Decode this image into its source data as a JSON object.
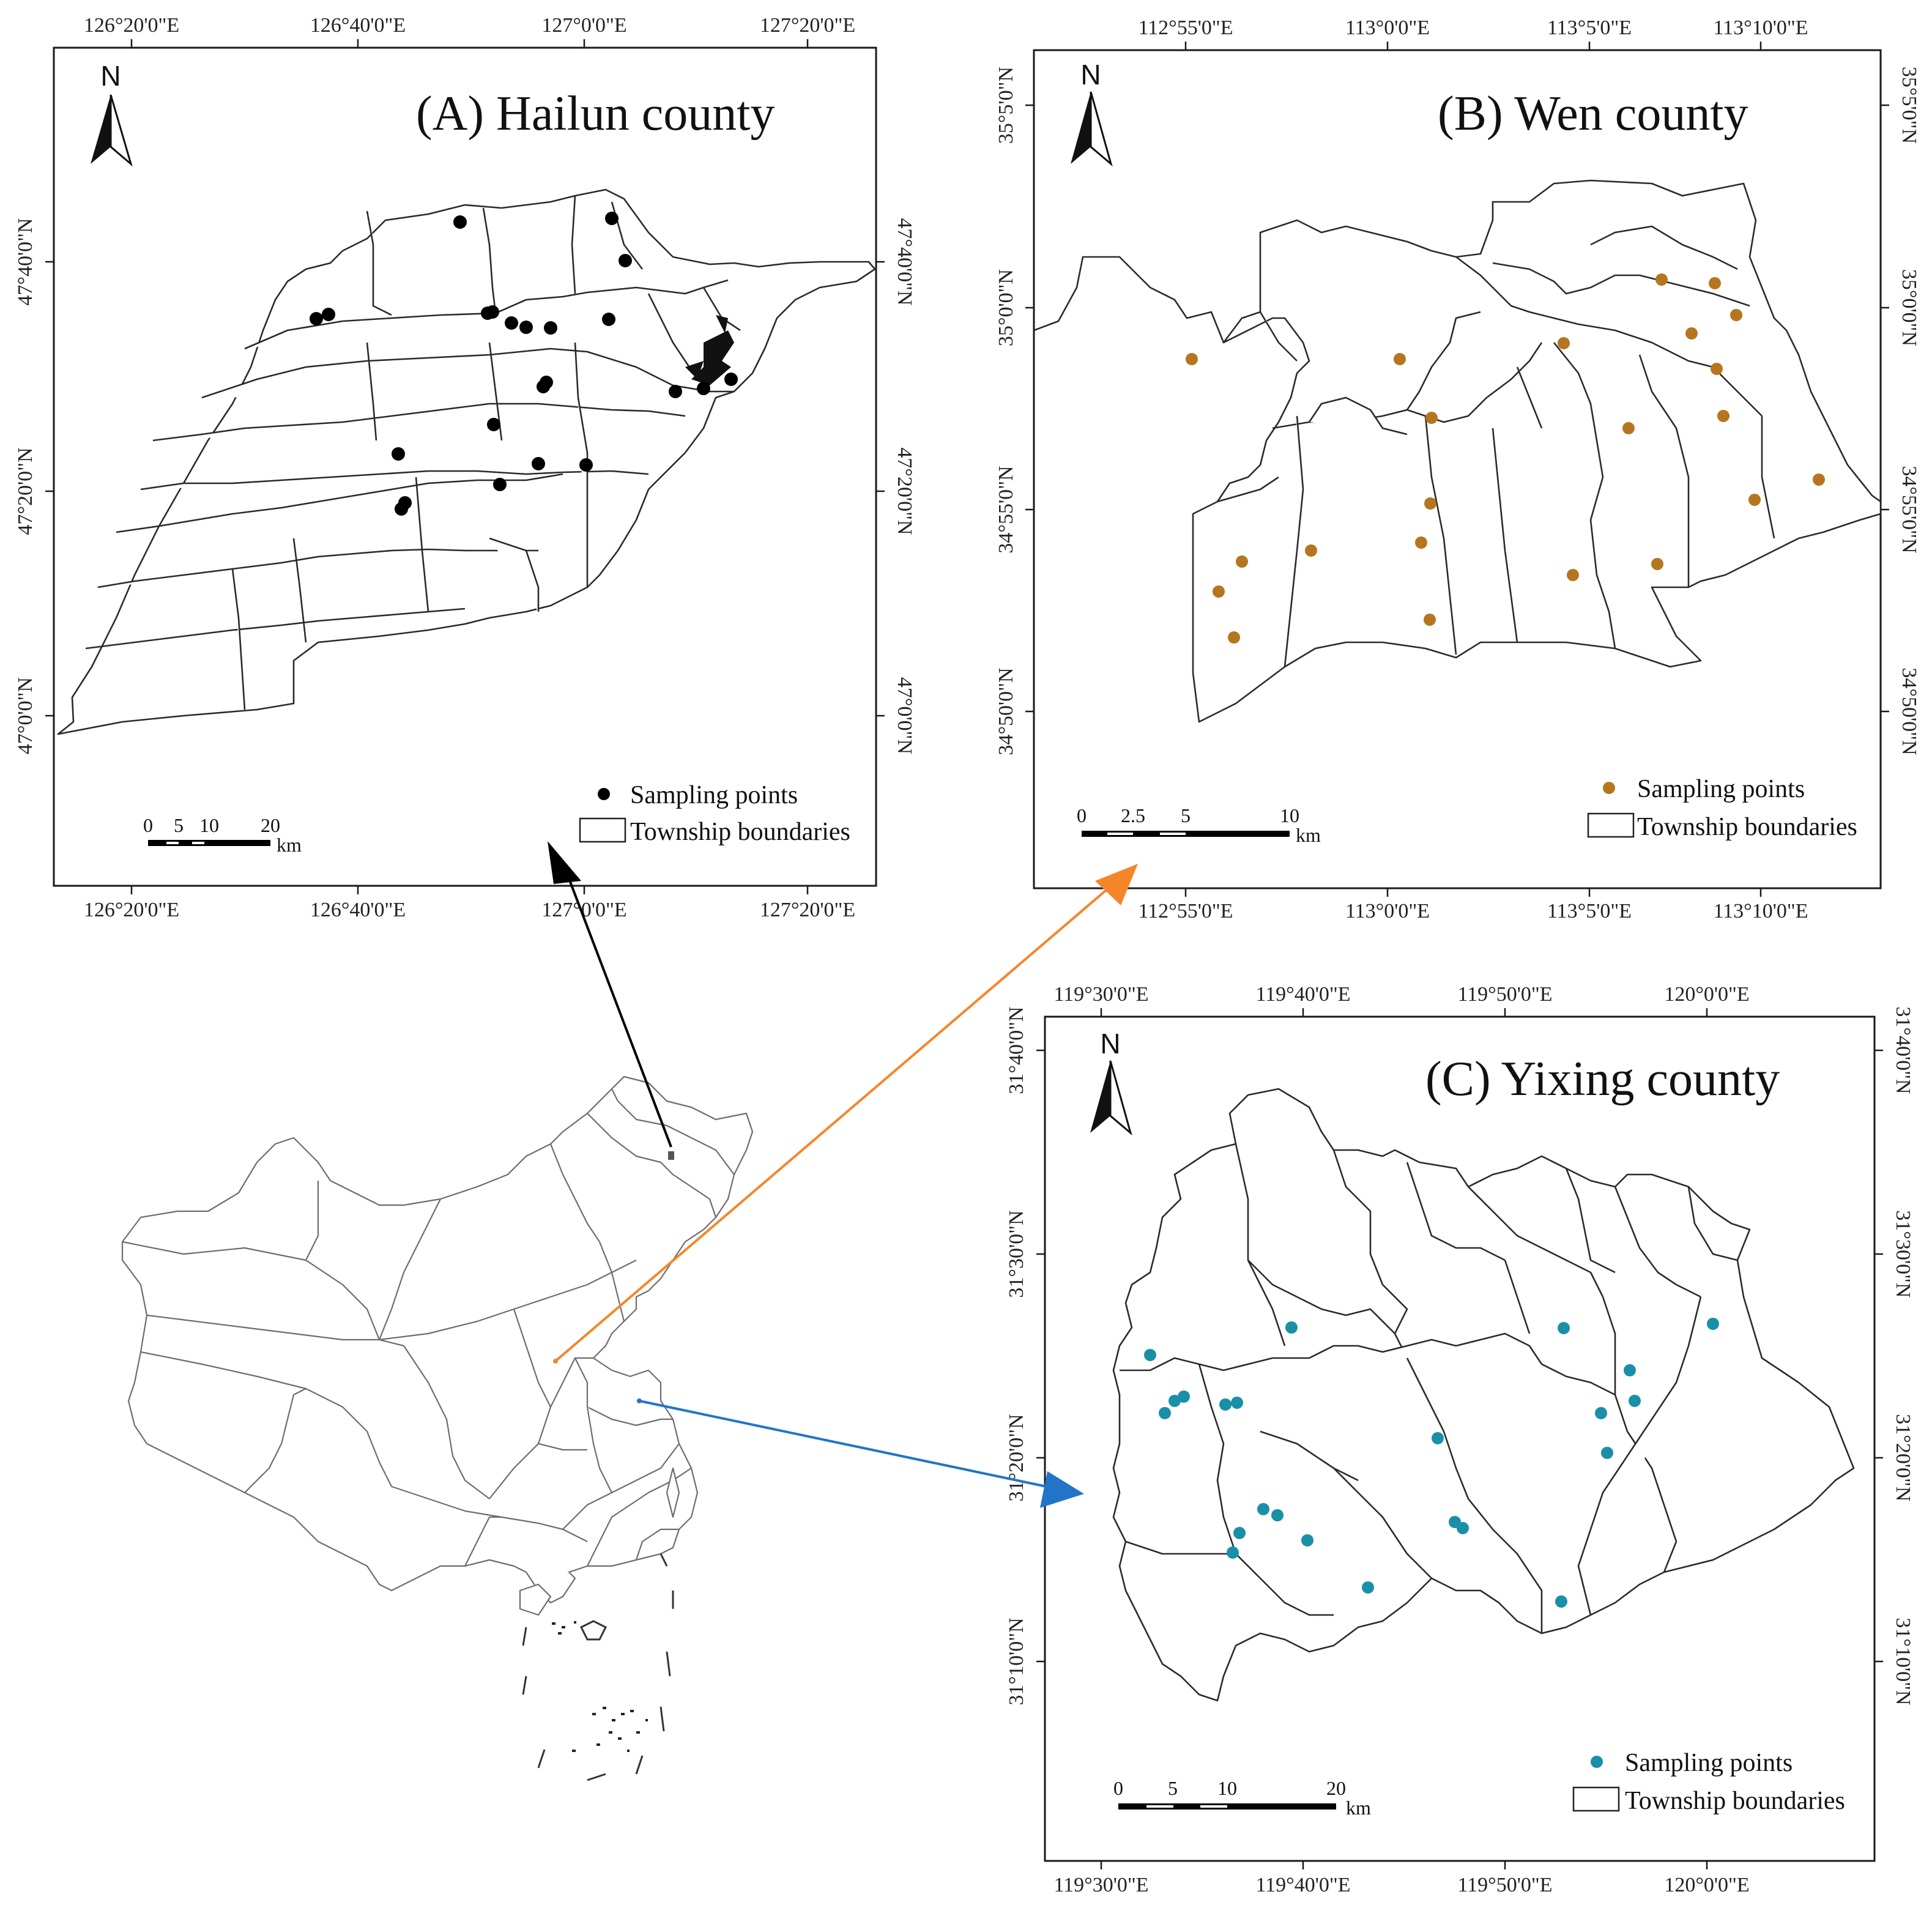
{
  "panels": {
    "hailun": {
      "title": "(A) Hailun county",
      "north_label": "N",
      "top_ticks": [
        "126°20'0\"E",
        "126°40'0\"E",
        "127°0'0\"E",
        "127°20'0\"E"
      ],
      "bottom_ticks": [
        "126°20'0\"E",
        "126°40'0\"E",
        "127°0'0\"E",
        "127°20'0\"E"
      ],
      "left_ticks": [
        "47°40'0\"N",
        "47°20'0\"N",
        "47°0'0\"N"
      ],
      "right_ticks": [
        "47°40'0\"N",
        "47°20'0\"N",
        "47°0'0\"N"
      ],
      "legend_points": "Sampling points",
      "legend_bounds": "Township boundaries",
      "scale_labels": [
        "0",
        "5",
        "10",
        "20"
      ],
      "scale_unit": "km",
      "point_color": "#000000"
    },
    "wen": {
      "title": "(B) Wen county",
      "north_label": "N",
      "top_ticks": [
        "112°55'0\"E",
        "113°0'0\"E",
        "113°5'0\"E",
        "113°10'0\"E"
      ],
      "bottom_ticks": [
        "112°55'0\"E",
        "113°0'0\"E",
        "113°5'0\"E",
        "113°10'0\"E"
      ],
      "left_ticks": [
        "35°5'0\"N",
        "35°0'0\"N",
        "34°55'0\"N",
        "34°50'0\"N"
      ],
      "right_ticks": [
        "35°5'0\"N",
        "35°0'0\"N",
        "34°55'0\"N",
        "34°50'0\"N"
      ],
      "legend_points": "Sampling points",
      "legend_bounds": "Township boundaries",
      "scale_labels": [
        "0",
        "2.5",
        "5",
        "10"
      ],
      "scale_unit": "km",
      "point_color": "#b5761f"
    },
    "yixing": {
      "title": "(C) Yixing county",
      "north_label": "N",
      "top_ticks": [
        "119°30'0\"E",
        "119°40'0\"E",
        "119°50'0\"E",
        "120°0'0\"E"
      ],
      "bottom_ticks": [
        "119°30'0\"E",
        "119°40'0\"E",
        "119°50'0\"E",
        "120°0'0\"E"
      ],
      "left_ticks": [
        "31°40'0\"N",
        "31°30'0\"N",
        "31°20'0\"N",
        "31°10'0\"N"
      ],
      "right_ticks": [
        "31°40'0\"N",
        "31°30'0\"N",
        "31°20'0\"N",
        "31°10'0\"N"
      ],
      "legend_points": "Sampling points",
      "legend_bounds": "Township boundaries",
      "scale_labels": [
        "0",
        "5",
        "10",
        "20"
      ],
      "scale_unit": "km",
      "point_color": "#1a8fa8"
    }
  },
  "arrows": {
    "hailun_color": "#000000",
    "wen_color": "#f4862a",
    "yixing_color": "#2274c9"
  }
}
